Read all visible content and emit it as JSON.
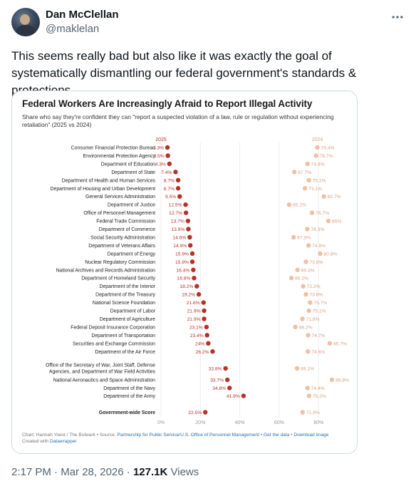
{
  "tweet": {
    "display_name": "Dan McClellan",
    "handle": "@maklelan",
    "text": "This seems really bad but also like it was exactly the goal of systematically dismantling our federal government's standards & protections.",
    "time": "2:17 PM",
    "separator": "·",
    "date": "Mar 28, 2026",
    "views_count": "127.1K",
    "views_label": "Views"
  },
  "footer": {
    "credit": "Chart: Hannah Yoest / The Bulwark • Source:",
    "source_link": "Partnership for Public Service/U.S. Office of Personnel Management",
    "get_data": "Get the data",
    "download": "Download image",
    "created_with": "Created with",
    "datawrapper": "Datawrapper",
    "dot": "•"
  },
  "colors": {
    "dot_2025": "#b5312a",
    "dot_2024": "#efc0a4",
    "label_2025": "#b5312a",
    "label_2024": "#d9a07f"
  },
  "chart_data": {
    "type": "dot-range",
    "title": "Federal Workers Are Increasingly Afraid to Report Illegal Activity",
    "subtitle": "Share who say they're confident they can \"report a suspected violation of a law, rule or regulation without experiencing retaliation\" (2025 vs 2024)",
    "series_labels": [
      "2025",
      "2024"
    ],
    "xlim": [
      0,
      100
    ],
    "x_ticks": [
      "0%",
      "20%",
      "40%",
      "60%",
      "80%"
    ],
    "x_tick_values": [
      0,
      20,
      40,
      60,
      80
    ],
    "rows": [
      {
        "agency": "Consumer Financial Protection Bureau",
        "v2025": 3.3,
        "l2025": "3.3%",
        "v2024": 79.4,
        "l2024": "79.4%"
      },
      {
        "agency": "Environmental Protection Agency",
        "v2025": 3.5,
        "l2025": "3.5%",
        "v2024": 78.7,
        "l2024": "78.7%"
      },
      {
        "agency": "Department of Education",
        "v2025": 4.3,
        "l2025": "4.3%",
        "v2024": 74.4,
        "l2024": "74.4%"
      },
      {
        "agency": "Department of State",
        "v2025": 7.4,
        "l2025": "7.4%",
        "v2024": 67.7,
        "l2024": "67.7%"
      },
      {
        "agency": "Department of Health and Human Services",
        "v2025": 8.7,
        "l2025": "8.7%",
        "v2024": 75.1,
        "l2024": "75.1%"
      },
      {
        "agency": "Department of Housing and Urban Development",
        "v2025": 8.7,
        "l2025": "8.7%",
        "v2024": 73.1,
        "l2024": "73.1%"
      },
      {
        "agency": "General Services Administration",
        "v2025": 9.5,
        "l2025": "9.5%",
        "v2024": 82.7,
        "l2024": "82.7%"
      },
      {
        "agency": "Department of Justice",
        "v2025": 12.5,
        "l2025": "12.5%",
        "v2024": 65.1,
        "l2024": "65.1%"
      },
      {
        "agency": "Office of Personnel Management",
        "v2025": 12.7,
        "l2025": "12.7%",
        "v2024": 76.7,
        "l2024": "76.7%"
      },
      {
        "agency": "Federal Trade Commission",
        "v2025": 13.7,
        "l2025": "13.7%",
        "v2024": 85,
        "l2024": "85%"
      },
      {
        "agency": "Department of Commerce",
        "v2025": 13.9,
        "l2025": "13.9%",
        "v2024": 74.3,
        "l2024": "74.3%"
      },
      {
        "agency": "Social Security Administration",
        "v2025": 14.6,
        "l2025": "14.6%",
        "v2024": 67.3,
        "l2024": "67.3%"
      },
      {
        "agency": "Department of Veterans Affairs",
        "v2025": 14.9,
        "l2025": "14.9%",
        "v2024": 74.9,
        "l2024": "74.9%"
      },
      {
        "agency": "Department of Energy",
        "v2025": 15.9,
        "l2025": "15.9%",
        "v2024": 80.8,
        "l2024": "80.8%"
      },
      {
        "agency": "Nuclear Regulatory Commission",
        "v2025": 15.9,
        "l2025": "15.9%",
        "v2024": 73.6,
        "l2024": "73.6%"
      },
      {
        "agency": "National Archives and Records Administration",
        "v2025": 16.4,
        "l2025": "16.4%",
        "v2024": 69.3,
        "l2024": "69.3%"
      },
      {
        "agency": "Department of Homeland Security",
        "v2025": 16.8,
        "l2025": "16.8%",
        "v2024": 66.2,
        "l2024": "66.2%"
      },
      {
        "agency": "Department of the Interior",
        "v2025": 18.2,
        "l2025": "18.2%",
        "v2024": 72.2,
        "l2024": "72.2%"
      },
      {
        "agency": "Department of the Treasury",
        "v2025": 19.2,
        "l2025": "19.2%",
        "v2024": 73.6,
        "l2024": "73.6%"
      },
      {
        "agency": "National Science Foundation",
        "v2025": 21.6,
        "l2025": "21.6%",
        "v2024": 75.7,
        "l2024": "75.7%"
      },
      {
        "agency": "Department of Labor",
        "v2025": 21.9,
        "l2025": "21.9%",
        "v2024": 75.1,
        "l2024": "75.1%"
      },
      {
        "agency": "Department of Agriculture",
        "v2025": 21.9,
        "l2025": "21.9%",
        "v2024": 71.8,
        "l2024": "71.8%"
      },
      {
        "agency": "Federal Deposit Insurance Corporation",
        "v2025": 23.1,
        "l2025": "23.1%",
        "v2024": 68.2,
        "l2024": "68.2%"
      },
      {
        "agency": "Department of Transportation",
        "v2025": 23.4,
        "l2025": "23.4%",
        "v2024": 74.7,
        "l2024": "74.7%"
      },
      {
        "agency": "Securities and Exchange Commission",
        "v2025": 24,
        "l2025": "24%",
        "v2024": 85.7,
        "l2024": "85.7%"
      },
      {
        "agency": "Department of the Air Force",
        "v2025": 26.2,
        "l2025": "26.2%",
        "v2024": 74.6,
        "l2024": "74.6%"
      },
      {
        "agency": [
          "Office of the Secretary of War, Joint Staff, Defense",
          "Agencies, and Department of War Field Activities"
        ],
        "v2025": 32.8,
        "l2025": "32.8%",
        "v2024": 69.1,
        "l2024": "69.1%"
      },
      {
        "agency": "National Aeronautics and Space Administration",
        "v2025": 33.7,
        "l2025": "33.7%",
        "v2024": 86.8,
        "l2024": "86.8%"
      },
      {
        "agency": "Department of the Navy",
        "v2025": 34.8,
        "l2025": "34.8%",
        "v2024": 74.4,
        "l2024": "74.4%"
      },
      {
        "agency": "Department of the Army",
        "v2025": 41.9,
        "l2025": "41.9%",
        "v2024": 75.2,
        "l2024": "75.2%"
      },
      {
        "agency": "Government-wide Score",
        "v2025": 22.5,
        "l2025": "22.5%",
        "v2024": 71.9,
        "l2024": "71.9%",
        "bold": true
      }
    ]
  }
}
